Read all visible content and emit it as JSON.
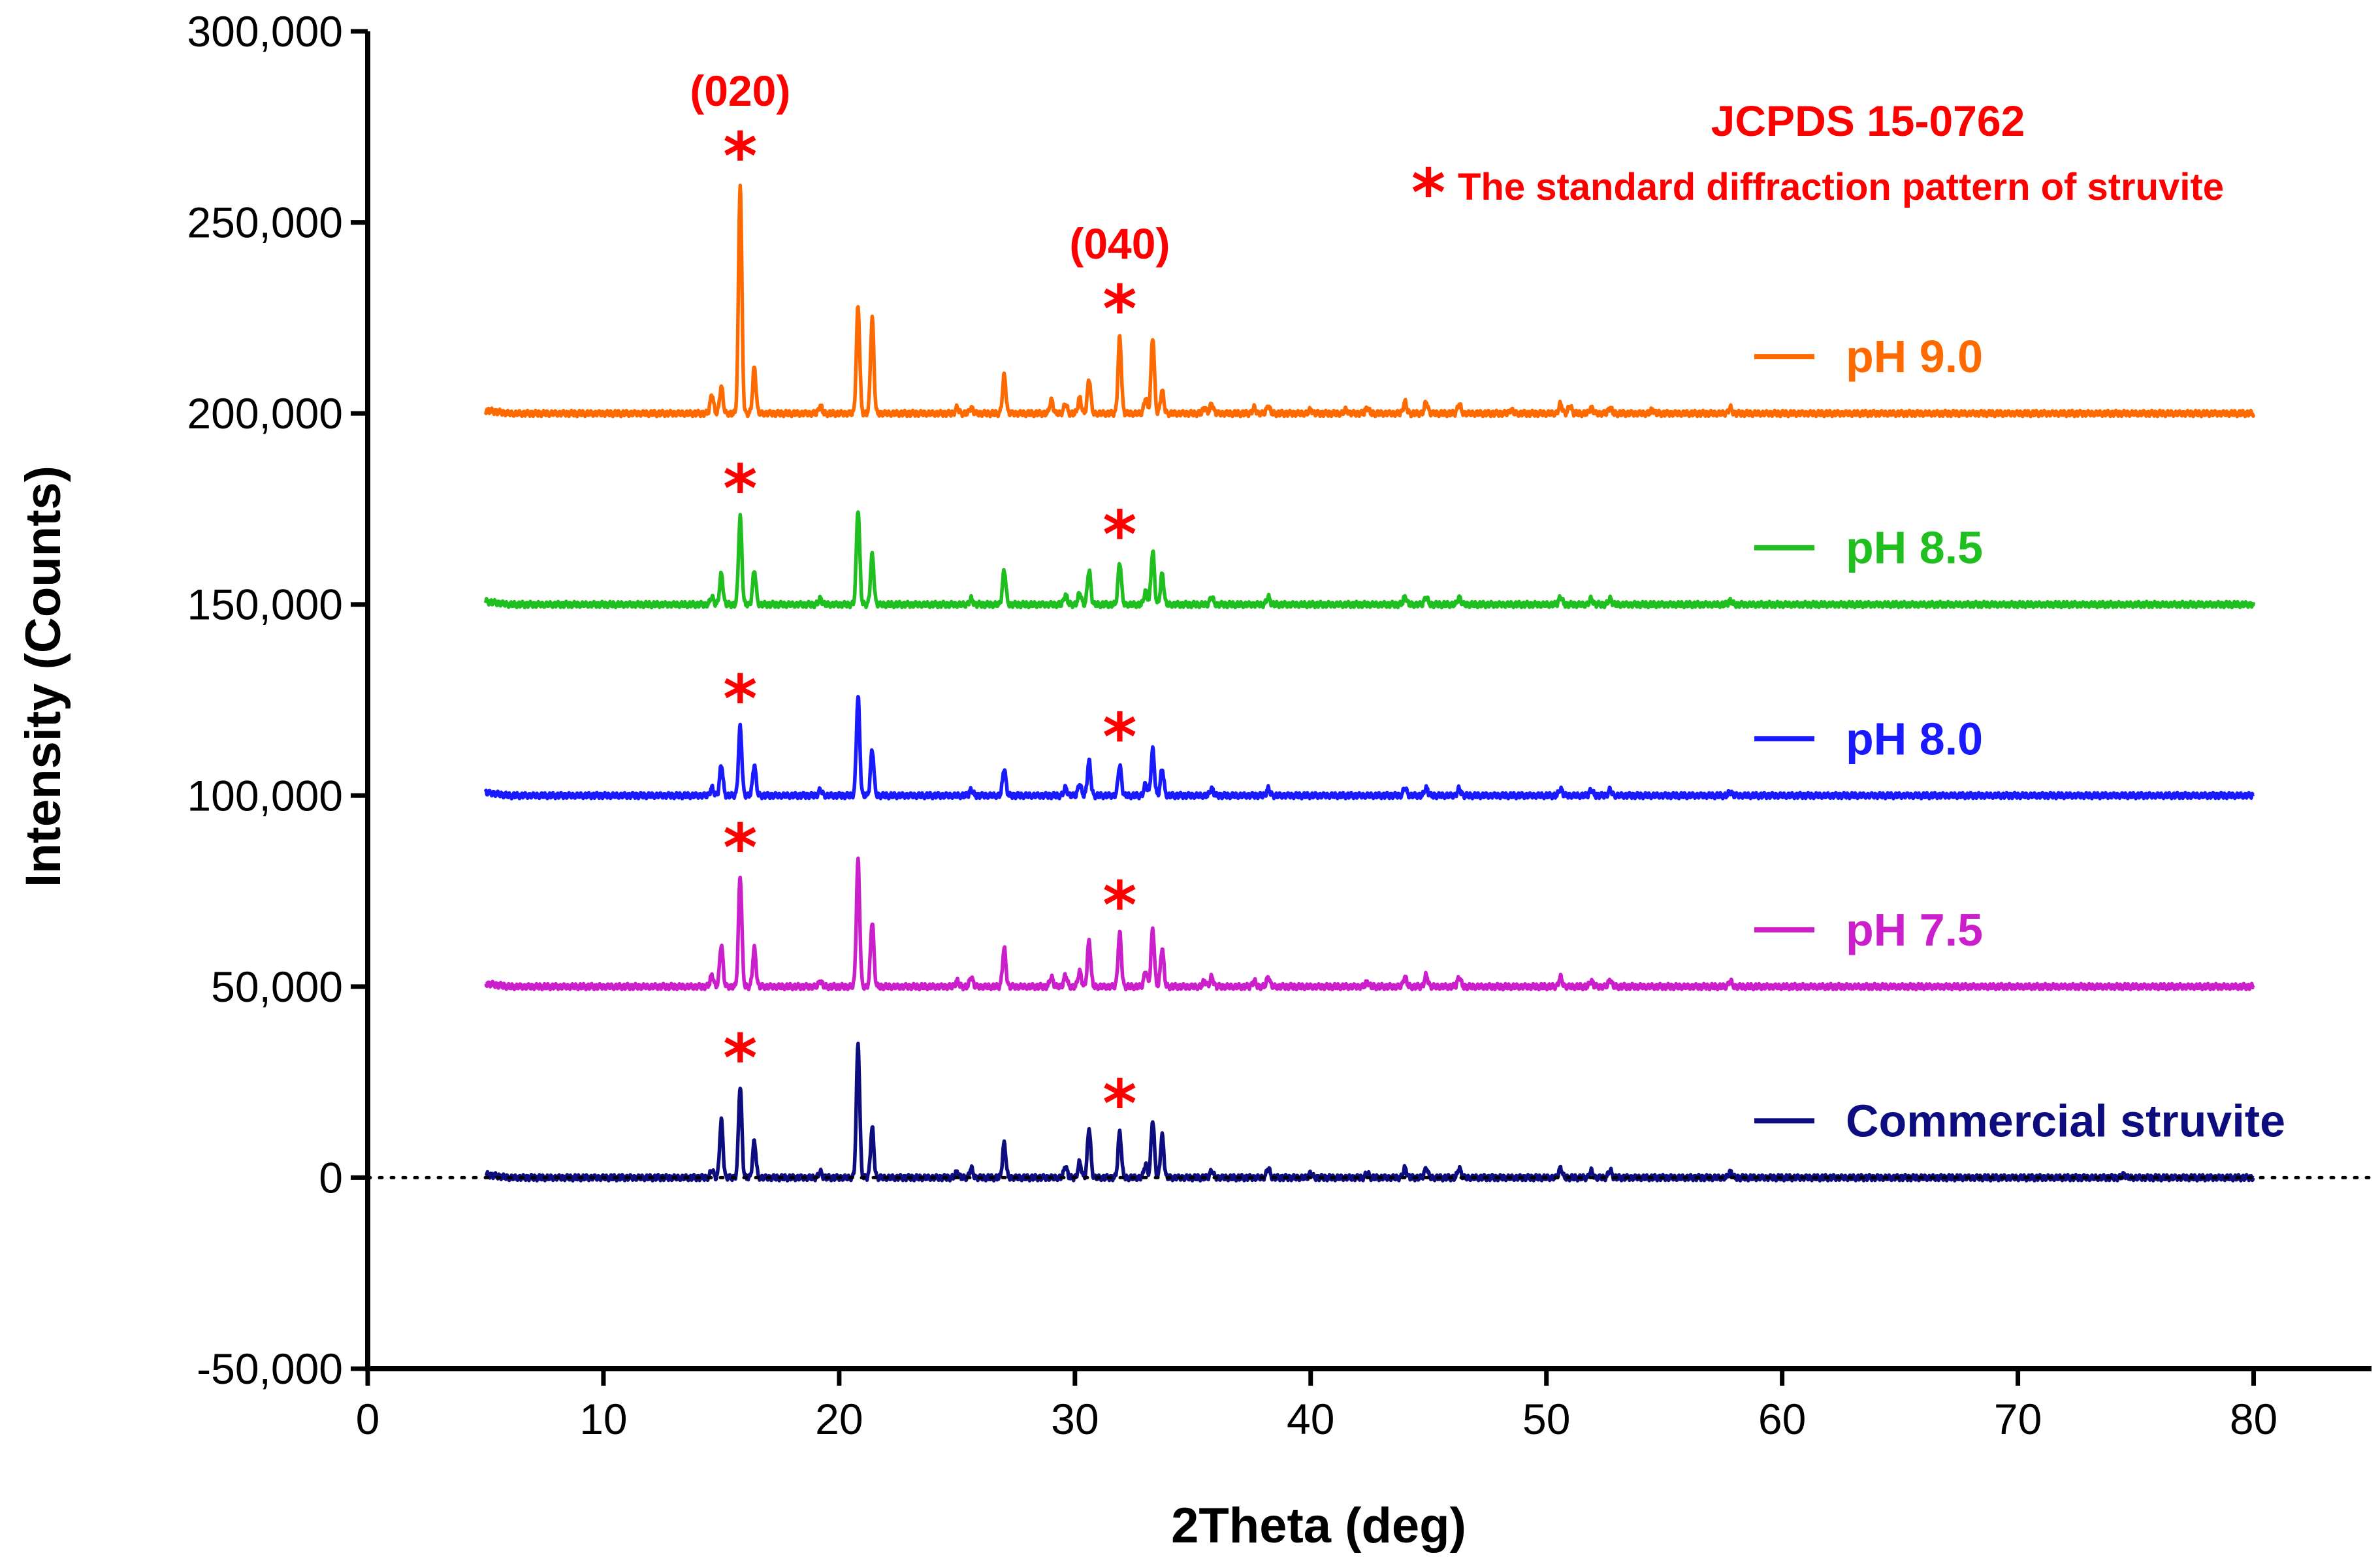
{
  "chart_data": {
    "type": "line",
    "xlabel": "2Theta (deg)",
    "ylabel": "Intensity (Counts)",
    "xlim": [
      0,
      85
    ],
    "ylim": [
      -50000,
      300000
    ],
    "x_ticks": [
      0,
      10,
      20,
      30,
      40,
      50,
      60,
      70,
      80
    ],
    "x_tick_labels": [
      "0",
      "10",
      "20",
      "30",
      "40",
      "50",
      "60",
      "70",
      "80"
    ],
    "y_ticks": [
      -50000,
      0,
      50000,
      100000,
      150000,
      200000,
      250000,
      300000
    ],
    "y_tick_labels": [
      "-50,000",
      "0",
      "50,000",
      "100,000",
      "150,000",
      "200,000",
      "250,000",
      "300,000"
    ],
    "zero_line": "dotted",
    "reference_title": "JCPDS 15-0762",
    "reference_note": "The standard diffraction pattern of struvite",
    "star_symbol": "*",
    "star_color": "#ff0000",
    "peak_annotations": [
      {
        "label": "(020)",
        "x": 15.8
      },
      {
        "label": "(040)",
        "x": 31.9
      }
    ],
    "x_range": [
      5,
      80
    ],
    "series": [
      {
        "name": "pH 9.0",
        "color": "#ff6a00",
        "offset": 200000,
        "peaks": [
          [
            14.6,
            5000
          ],
          [
            15.0,
            7000
          ],
          [
            15.8,
            60000
          ],
          [
            16.4,
            12000
          ],
          [
            19.2,
            2000
          ],
          [
            20.8,
            28000
          ],
          [
            21.4,
            25000
          ],
          [
            25.0,
            1500
          ],
          [
            25.6,
            1500
          ],
          [
            27.0,
            10000
          ],
          [
            29.0,
            3500
          ],
          [
            29.6,
            2500
          ],
          [
            30.2,
            4000
          ],
          [
            30.6,
            9000
          ],
          [
            31.9,
            20000
          ],
          [
            33.0,
            4000
          ],
          [
            33.3,
            20000
          ],
          [
            33.7,
            6000
          ],
          [
            35.5,
            1500
          ],
          [
            35.8,
            2500
          ],
          [
            37.6,
            1500
          ],
          [
            38.2,
            2000
          ],
          [
            40.0,
            1000
          ],
          [
            41.5,
            1000
          ],
          [
            42.4,
            1500
          ],
          [
            44.0,
            3000
          ],
          [
            44.9,
            3000
          ],
          [
            46.3,
            2500
          ],
          [
            48.5,
            1000
          ],
          [
            50.6,
            2500
          ],
          [
            51.0,
            2000
          ],
          [
            51.9,
            1500
          ],
          [
            52.7,
            1500
          ],
          [
            54.5,
            1000
          ],
          [
            57.8,
            1500
          ]
        ],
        "stars": [
          15.8,
          31.9
        ]
      },
      {
        "name": "pH 8.5",
        "color": "#1fbf1f",
        "offset": 150000,
        "peaks": [
          [
            14.6,
            2000
          ],
          [
            15.0,
            8000
          ],
          [
            15.8,
            23000
          ],
          [
            16.4,
            9000
          ],
          [
            19.2,
            1500
          ],
          [
            20.8,
            25000
          ],
          [
            21.4,
            13000
          ],
          [
            25.6,
            1500
          ],
          [
            27.0,
            9000
          ],
          [
            29.6,
            2500
          ],
          [
            30.2,
            3000
          ],
          [
            30.6,
            9000
          ],
          [
            31.9,
            11000
          ],
          [
            33.0,
            3500
          ],
          [
            33.3,
            14000
          ],
          [
            33.7,
            8000
          ],
          [
            35.8,
            2000
          ],
          [
            38.2,
            2000
          ],
          [
            44.0,
            2000
          ],
          [
            44.9,
            2000
          ],
          [
            46.3,
            1800
          ],
          [
            50.6,
            2000
          ],
          [
            51.9,
            1500
          ],
          [
            52.7,
            1500
          ],
          [
            57.8,
            1000
          ]
        ],
        "stars": [
          15.8,
          31.9
        ]
      },
      {
        "name": "pH 8.0",
        "color": "#1a1aff",
        "offset": 100000,
        "peaks": [
          [
            14.6,
            2000
          ],
          [
            15.0,
            8000
          ],
          [
            15.8,
            18000
          ],
          [
            16.4,
            8000
          ],
          [
            19.2,
            1500
          ],
          [
            20.8,
            26000
          ],
          [
            21.4,
            12000
          ],
          [
            25.6,
            1500
          ],
          [
            27.0,
            7000
          ],
          [
            29.6,
            2000
          ],
          [
            30.2,
            3000
          ],
          [
            30.6,
            9000
          ],
          [
            31.9,
            8000
          ],
          [
            33.0,
            3000
          ],
          [
            33.3,
            12000
          ],
          [
            33.7,
            7000
          ],
          [
            35.8,
            1800
          ],
          [
            38.2,
            1800
          ],
          [
            44.0,
            2000
          ],
          [
            44.9,
            2000
          ],
          [
            46.3,
            1800
          ],
          [
            50.6,
            1800
          ],
          [
            51.9,
            1500
          ],
          [
            52.7,
            1500
          ],
          [
            57.8,
            1000
          ]
        ],
        "stars": [
          15.8,
          31.9
        ]
      },
      {
        "name": "pH 7.5",
        "color": "#cc1fcc",
        "offset": 50000,
        "peaks": [
          [
            14.6,
            3000
          ],
          [
            15.0,
            11000
          ],
          [
            15.8,
            29000
          ],
          [
            16.4,
            10000
          ],
          [
            19.2,
            1500
          ],
          [
            20.8,
            33000
          ],
          [
            21.4,
            17000
          ],
          [
            25.0,
            1500
          ],
          [
            25.6,
            2500
          ],
          [
            27.0,
            10000
          ],
          [
            29.0,
            2500
          ],
          [
            29.6,
            3000
          ],
          [
            30.2,
            4000
          ],
          [
            30.6,
            12000
          ],
          [
            31.9,
            14000
          ],
          [
            33.0,
            4000
          ],
          [
            33.3,
            15000
          ],
          [
            33.7,
            10000
          ],
          [
            35.5,
            1500
          ],
          [
            35.8,
            2500
          ],
          [
            37.6,
            1500
          ],
          [
            38.2,
            2500
          ],
          [
            42.4,
            1200
          ],
          [
            44.0,
            2500
          ],
          [
            44.9,
            3000
          ],
          [
            46.3,
            2500
          ],
          [
            50.6,
            2500
          ],
          [
            51.9,
            1500
          ],
          [
            52.7,
            1800
          ],
          [
            57.8,
            1500
          ]
        ],
        "stars": [
          15.8,
          31.9
        ]
      },
      {
        "name": "Commercial struvite",
        "color": "#0d0d80",
        "offset": 0,
        "peaks": [
          [
            14.6,
            2000
          ],
          [
            15.0,
            15000
          ],
          [
            15.8,
            24000
          ],
          [
            16.4,
            9500
          ],
          [
            19.2,
            1500
          ],
          [
            20.8,
            35000
          ],
          [
            21.4,
            13000
          ],
          [
            25.0,
            1500
          ],
          [
            25.6,
            2500
          ],
          [
            27.0,
            9000
          ],
          [
            29.6,
            3000
          ],
          [
            30.2,
            4000
          ],
          [
            30.6,
            13000
          ],
          [
            31.9,
            12000
          ],
          [
            33.0,
            3500
          ],
          [
            33.3,
            15000
          ],
          [
            33.7,
            11000
          ],
          [
            35.8,
            1800
          ],
          [
            38.2,
            2500
          ],
          [
            40.0,
            1200
          ],
          [
            42.4,
            1200
          ],
          [
            44.0,
            2500
          ],
          [
            44.9,
            2500
          ],
          [
            46.3,
            2500
          ],
          [
            50.6,
            2500
          ],
          [
            51.9,
            1800
          ],
          [
            52.7,
            2000
          ],
          [
            57.8,
            1500
          ],
          [
            74.5,
            800
          ]
        ],
        "stars": [
          15.8,
          31.9
        ]
      }
    ]
  }
}
